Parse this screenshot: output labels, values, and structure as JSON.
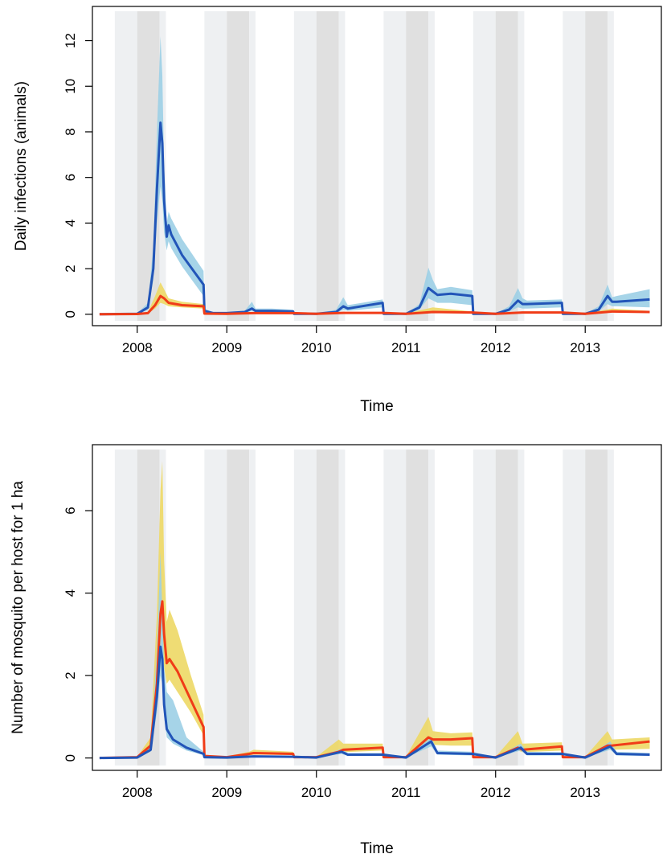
{
  "chart_data": [
    {
      "type": "line",
      "ylabel": "Daily infections (animals)",
      "xlabel": "Time",
      "xlim": [
        2007.5,
        2013.85
      ],
      "ylim": [
        -0.5,
        13.5
      ],
      "x_ticks": [
        2008,
        2009,
        2010,
        2011,
        2012,
        2013
      ],
      "x_tick_labels": [
        "2008",
        "2009",
        "2010",
        "2011",
        "2012",
        "2013"
      ],
      "y_ticks": [
        0,
        2,
        4,
        6,
        8,
        10,
        12
      ],
      "y_tick_labels": [
        "0",
        "2",
        "4",
        "6",
        "8",
        "10",
        "12"
      ],
      "grid": false,
      "shaded_periods": [
        {
          "start": 2007.75,
          "end": 2008.0,
          "shade": "light"
        },
        {
          "start": 2008.0,
          "end": 2008.25,
          "shade": "dark"
        },
        {
          "start": 2008.25,
          "end": 2008.32,
          "shade": "light"
        },
        {
          "start": 2008.75,
          "end": 2009.0,
          "shade": "light"
        },
        {
          "start": 2009.0,
          "end": 2009.25,
          "shade": "dark"
        },
        {
          "start": 2009.25,
          "end": 2009.32,
          "shade": "light"
        },
        {
          "start": 2009.75,
          "end": 2010.0,
          "shade": "light"
        },
        {
          "start": 2010.0,
          "end": 2010.25,
          "shade": "dark"
        },
        {
          "start": 2010.25,
          "end": 2010.32,
          "shade": "light"
        },
        {
          "start": 2010.75,
          "end": 2011.0,
          "shade": "light"
        },
        {
          "start": 2011.0,
          "end": 2011.25,
          "shade": "dark"
        },
        {
          "start": 2011.25,
          "end": 2011.32,
          "shade": "light"
        },
        {
          "start": 2011.75,
          "end": 2012.0,
          "shade": "light"
        },
        {
          "start": 2012.0,
          "end": 2012.25,
          "shade": "dark"
        },
        {
          "start": 2012.25,
          "end": 2012.32,
          "shade": "light"
        },
        {
          "start": 2012.75,
          "end": 2013.0,
          "shade": "light"
        },
        {
          "start": 2013.0,
          "end": 2013.25,
          "shade": "dark"
        },
        {
          "start": 2013.25,
          "end": 2013.32,
          "shade": "light"
        }
      ],
      "series": [
        {
          "color": "#2255b8",
          "band_color": "#9ccfe6",
          "x": [
            2007.58,
            2008.0,
            2008.12,
            2008.18,
            2008.22,
            2008.26,
            2008.28,
            2008.3,
            2008.33,
            2008.35,
            2008.38,
            2008.5,
            2008.74,
            2008.75,
            2008.85,
            2009.0,
            2009.2,
            2009.28,
            2009.32,
            2009.5,
            2009.74,
            2009.75,
            2010.0,
            2010.22,
            2010.3,
            2010.35,
            2010.74,
            2010.75,
            2011.0,
            2011.15,
            2011.25,
            2011.3,
            2011.35,
            2011.5,
            2011.74,
            2011.75,
            2012.0,
            2012.15,
            2012.25,
            2012.3,
            2012.35,
            2012.74,
            2012.75,
            2013.0,
            2013.15,
            2013.25,
            2013.3,
            2013.35,
            2013.72
          ],
          "y": [
            0,
            0.02,
            0.3,
            2.0,
            5.5,
            8.4,
            7.5,
            5.0,
            3.4,
            3.9,
            3.5,
            2.6,
            1.3,
            0.15,
            0.05,
            0.05,
            0.1,
            0.25,
            0.15,
            0.15,
            0.12,
            0.02,
            0.02,
            0.1,
            0.35,
            0.25,
            0.5,
            0.02,
            0.02,
            0.3,
            1.15,
            1.0,
            0.85,
            0.9,
            0.8,
            0.02,
            0.02,
            0.2,
            0.6,
            0.45,
            0.45,
            0.5,
            0.02,
            0.02,
            0.2,
            0.8,
            0.55,
            0.55,
            0.65
          ],
          "lower": [
            0,
            0.02,
            0.2,
            1.5,
            4.0,
            5.6,
            5.0,
            3.6,
            2.8,
            3.2,
            2.9,
            2.1,
            0.8,
            0.1,
            0.03,
            0.03,
            0.07,
            0.15,
            0.1,
            0.1,
            0.08,
            0.01,
            0.01,
            0.06,
            0.2,
            0.15,
            0.3,
            0.01,
            0.01,
            0.2,
            0.7,
            0.6,
            0.5,
            0.5,
            0.4,
            0.01,
            0.01,
            0.12,
            0.3,
            0.25,
            0.25,
            0.3,
            0.01,
            0.01,
            0.12,
            0.45,
            0.35,
            0.35,
            0.3
          ],
          "upper": [
            0.05,
            0.03,
            0.5,
            3.0,
            8.0,
            12.2,
            10.5,
            6.5,
            4.0,
            4.5,
            4.2,
            3.3,
            1.9,
            0.25,
            0.08,
            0.08,
            0.15,
            0.55,
            0.25,
            0.25,
            0.2,
            0.03,
            0.03,
            0.2,
            0.75,
            0.4,
            0.65,
            0.03,
            0.03,
            0.45,
            2.05,
            1.5,
            1.1,
            1.2,
            1.05,
            0.03,
            0.03,
            0.35,
            1.15,
            0.7,
            0.6,
            0.65,
            0.03,
            0.03,
            0.35,
            1.3,
            0.75,
            0.8,
            1.1
          ]
        },
        {
          "color": "#f03c18",
          "band_color": "#edd865",
          "x": [
            2007.58,
            2008.0,
            2008.12,
            2008.2,
            2008.26,
            2008.3,
            2008.35,
            2008.5,
            2008.74,
            2008.75,
            2009.0,
            2009.3,
            2009.74,
            2010.0,
            2010.3,
            2010.74,
            2011.0,
            2011.3,
            2011.74,
            2012.0,
            2012.3,
            2012.74,
            2013.0,
            2013.3,
            2013.72
          ],
          "y": [
            0,
            0.01,
            0.05,
            0.4,
            0.8,
            0.7,
            0.5,
            0.4,
            0.35,
            0.03,
            0.02,
            0.05,
            0.05,
            0.02,
            0.06,
            0.06,
            0.02,
            0.1,
            0.08,
            0.02,
            0.08,
            0.08,
            0.02,
            0.12,
            0.1
          ],
          "lower": [
            0,
            0.01,
            0.03,
            0.25,
            0.5,
            0.45,
            0.35,
            0.3,
            0.25,
            0.02,
            0.01,
            0.03,
            0.03,
            0.01,
            0.04,
            0.04,
            0.01,
            0.06,
            0.05,
            0.01,
            0.05,
            0.05,
            0.01,
            0.08,
            0.06
          ],
          "upper": [
            0.02,
            0.02,
            0.1,
            0.8,
            1.4,
            1.1,
            0.7,
            0.55,
            0.45,
            0.05,
            0.04,
            0.08,
            0.08,
            0.04,
            0.1,
            0.1,
            0.04,
            0.3,
            0.12,
            0.04,
            0.12,
            0.12,
            0.04,
            0.25,
            0.15
          ]
        }
      ]
    },
    {
      "type": "line",
      "ylabel": "Number of mosquito per host for 1 ha",
      "xlabel": "Time",
      "xlim": [
        2007.5,
        2013.85
      ],
      "ylim": [
        -0.3,
        7.6
      ],
      "x_ticks": [
        2008,
        2009,
        2010,
        2011,
        2012,
        2013
      ],
      "x_tick_labels": [
        "2008",
        "2009",
        "2010",
        "2011",
        "2012",
        "2013"
      ],
      "y_ticks": [
        0,
        2,
        4,
        6
      ],
      "y_tick_labels": [
        "0",
        "2",
        "4",
        "6"
      ],
      "grid": false,
      "shaded_periods": [
        {
          "start": 2007.75,
          "end": 2008.0,
          "shade": "light"
        },
        {
          "start": 2008.0,
          "end": 2008.25,
          "shade": "dark"
        },
        {
          "start": 2008.25,
          "end": 2008.32,
          "shade": "light"
        },
        {
          "start": 2008.75,
          "end": 2009.0,
          "shade": "light"
        },
        {
          "start": 2009.0,
          "end": 2009.25,
          "shade": "dark"
        },
        {
          "start": 2009.25,
          "end": 2009.32,
          "shade": "light"
        },
        {
          "start": 2009.75,
          "end": 2010.0,
          "shade": "light"
        },
        {
          "start": 2010.0,
          "end": 2010.25,
          "shade": "dark"
        },
        {
          "start": 2010.25,
          "end": 2010.32,
          "shade": "light"
        },
        {
          "start": 2010.75,
          "end": 2011.0,
          "shade": "light"
        },
        {
          "start": 2011.0,
          "end": 2011.25,
          "shade": "dark"
        },
        {
          "start": 2011.25,
          "end": 2011.32,
          "shade": "light"
        },
        {
          "start": 2011.75,
          "end": 2012.0,
          "shade": "light"
        },
        {
          "start": 2012.0,
          "end": 2012.25,
          "shade": "dark"
        },
        {
          "start": 2012.25,
          "end": 2012.32,
          "shade": "light"
        },
        {
          "start": 2012.75,
          "end": 2013.0,
          "shade": "light"
        },
        {
          "start": 2013.0,
          "end": 2013.25,
          "shade": "dark"
        },
        {
          "start": 2013.25,
          "end": 2013.32,
          "shade": "light"
        }
      ],
      "series": [
        {
          "color": "#f03c18",
          "band_color": "#edd865",
          "x": [
            2007.58,
            2008.0,
            2008.15,
            2008.22,
            2008.26,
            2008.28,
            2008.3,
            2008.33,
            2008.36,
            2008.45,
            2008.6,
            2008.74,
            2008.75,
            2009.0,
            2009.25,
            2009.3,
            2009.74,
            2009.75,
            2010.0,
            2010.25,
            2010.3,
            2010.74,
            2010.75,
            2011.0,
            2011.25,
            2011.3,
            2011.5,
            2011.74,
            2011.75,
            2012.0,
            2012.25,
            2012.3,
            2012.74,
            2012.75,
            2013.0,
            2013.25,
            2013.3,
            2013.72
          ],
          "y": [
            0,
            0.02,
            0.3,
            1.8,
            3.5,
            3.8,
            3.0,
            2.3,
            2.4,
            2.1,
            1.4,
            0.75,
            0.05,
            0.02,
            0.1,
            0.12,
            0.1,
            0.02,
            0.02,
            0.15,
            0.2,
            0.25,
            0.02,
            0.02,
            0.5,
            0.45,
            0.45,
            0.48,
            0.02,
            0.02,
            0.25,
            0.2,
            0.28,
            0.02,
            0.02,
            0.3,
            0.3,
            0.4
          ],
          "lower": [
            0,
            0.01,
            0.2,
            1.3,
            2.6,
            2.8,
            2.2,
            1.8,
            1.9,
            1.6,
            1.1,
            0.55,
            0.03,
            0.01,
            0.06,
            0.08,
            0.07,
            0.01,
            0.01,
            0.1,
            0.14,
            0.18,
            0.01,
            0.01,
            0.35,
            0.32,
            0.3,
            0.3,
            0.01,
            0.01,
            0.18,
            0.14,
            0.18,
            0.01,
            0.01,
            0.2,
            0.2,
            0.22
          ],
          "upper": [
            0.03,
            0.03,
            0.5,
            3.5,
            6.5,
            7.2,
            4.8,
            3.3,
            3.6,
            3.1,
            2.0,
            1.05,
            0.08,
            0.04,
            0.15,
            0.2,
            0.15,
            0.03,
            0.03,
            0.45,
            0.35,
            0.35,
            0.03,
            0.03,
            1.0,
            0.65,
            0.6,
            0.62,
            0.03,
            0.03,
            0.65,
            0.35,
            0.38,
            0.03,
            0.03,
            0.65,
            0.45,
            0.5
          ]
        },
        {
          "color": "#2255b8",
          "band_color": "#9ccfe6",
          "x": [
            2007.58,
            2008.0,
            2008.15,
            2008.22,
            2008.26,
            2008.28,
            2008.3,
            2008.33,
            2008.4,
            2008.55,
            2008.74,
            2008.75,
            2009.0,
            2009.3,
            2009.74,
            2010.0,
            2010.28,
            2010.35,
            2010.74,
            2011.0,
            2011.28,
            2011.35,
            2011.74,
            2012.0,
            2012.28,
            2012.35,
            2012.74,
            2013.0,
            2013.28,
            2013.35,
            2013.72
          ],
          "y": [
            0,
            0.01,
            0.2,
            1.5,
            2.7,
            2.4,
            1.3,
            0.7,
            0.45,
            0.25,
            0.1,
            0.02,
            0.01,
            0.04,
            0.03,
            0.01,
            0.15,
            0.08,
            0.08,
            0.01,
            0.4,
            0.12,
            0.1,
            0.01,
            0.25,
            0.1,
            0.1,
            0.01,
            0.28,
            0.1,
            0.08
          ],
          "lower": [
            0,
            0.01,
            0.15,
            1.1,
            2.0,
            1.8,
            1.0,
            0.5,
            0.35,
            0.18,
            0.07,
            0.01,
            0.01,
            0.02,
            0.02,
            0.01,
            0.1,
            0.05,
            0.05,
            0.01,
            0.28,
            0.08,
            0.06,
            0.01,
            0.18,
            0.06,
            0.06,
            0.01,
            0.2,
            0.06,
            0.05
          ],
          "upper": [
            0.02,
            0.02,
            0.3,
            2.6,
            5.0,
            3.5,
            2.2,
            1.6,
            1.4,
            0.5,
            0.15,
            0.03,
            0.02,
            0.06,
            0.05,
            0.02,
            0.22,
            0.12,
            0.12,
            0.02,
            0.5,
            0.18,
            0.15,
            0.02,
            0.35,
            0.15,
            0.14,
            0.02,
            0.4,
            0.15,
            0.12
          ]
        }
      ]
    }
  ]
}
